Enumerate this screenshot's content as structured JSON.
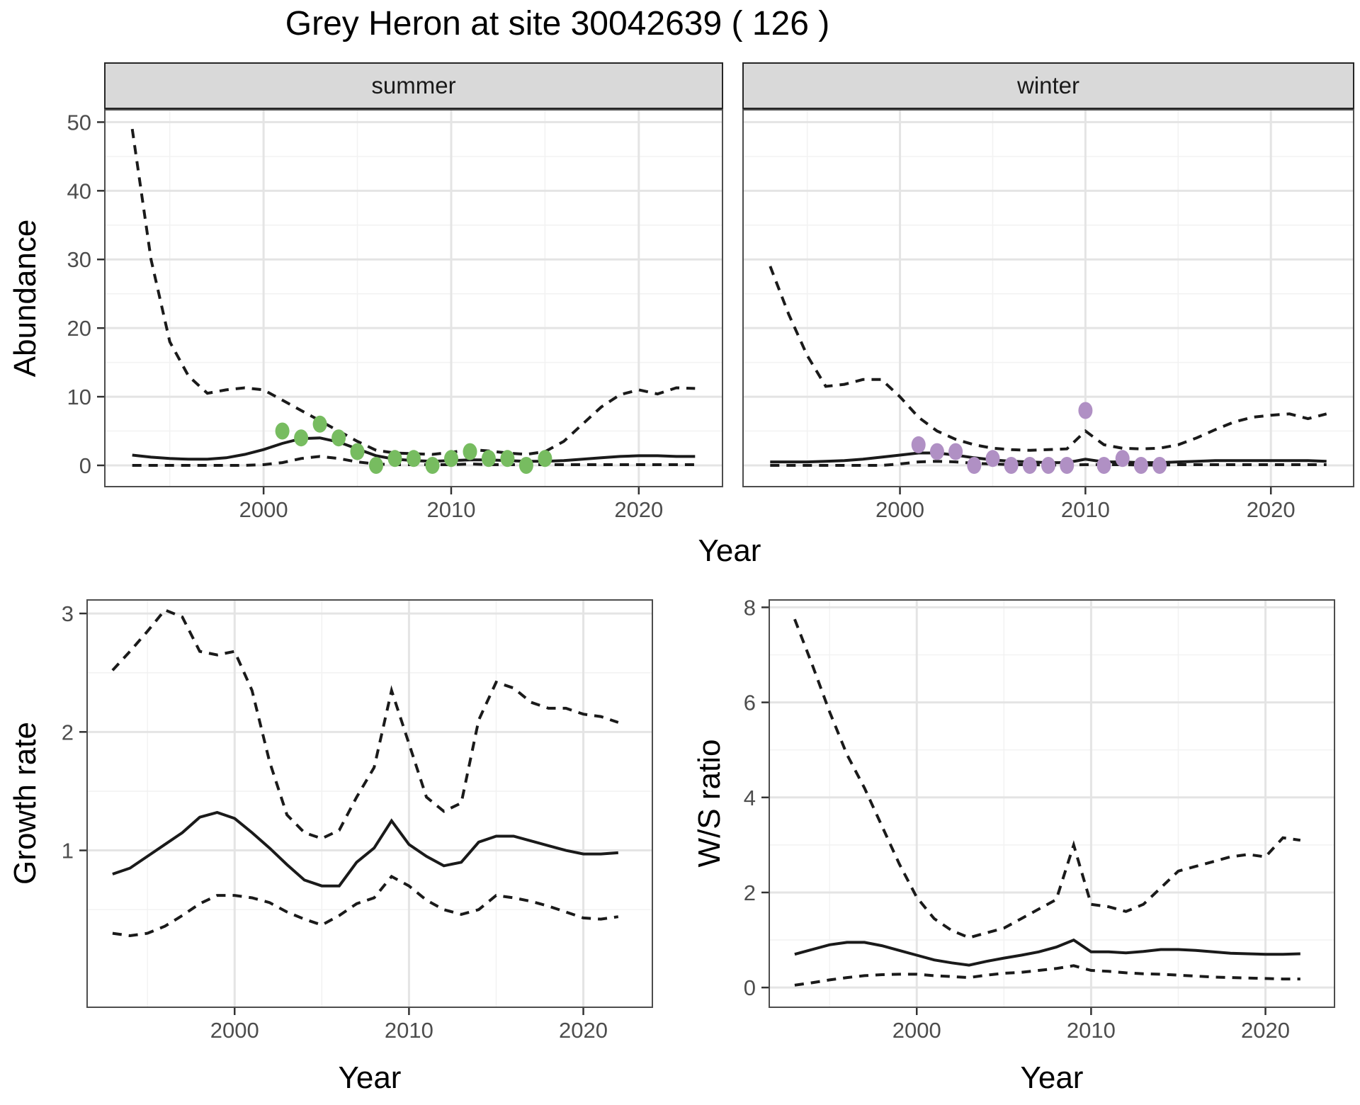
{
  "title": "Grey Heron at site 30042639 ( 126 )",
  "colors": {
    "line": "#1A1A1A",
    "summer_point": "#77BC60",
    "winter_point": "#B090C4",
    "grid_major": "#E4E4E4",
    "grid_minor": "#F2F2F2",
    "panel_border": "#4D4D4D",
    "strip_fill": "#D9D9D9",
    "tick_text": "#4D4D4D",
    "tick_mark": "#333333"
  },
  "axes": {
    "top_ylabel": "Abundance",
    "top_xlabel": "Year",
    "bottom_left_ylabel": "Growth rate",
    "bottom_left_xlabel": "Year",
    "bottom_right_ylabel": "W/S ratio",
    "bottom_right_xlabel": "Year"
  },
  "chart_data": [
    {
      "facet": "summer",
      "type": "line",
      "xlabel": "Year",
      "ylabel": "Abundance",
      "x_range": [
        1991.5,
        2024.5
      ],
      "y_range": [
        -3.2,
        51.9
      ],
      "x_ticks": [
        2000,
        2010,
        2020
      ],
      "x_minor": [
        1995,
        2005,
        2015
      ],
      "y_ticks": [
        0,
        10,
        20,
        30,
        40,
        50
      ],
      "y_minor": [
        5,
        15,
        25,
        35,
        45
      ],
      "years": [
        1993,
        1994,
        1995,
        1996,
        1997,
        1998,
        1999,
        2000,
        2001,
        2002,
        2003,
        2004,
        2005,
        2006,
        2007,
        2008,
        2009,
        2010,
        2011,
        2012,
        2013,
        2014,
        2015,
        2016,
        2017,
        2018,
        2019,
        2020,
        2021,
        2022,
        2023
      ],
      "series": [
        {
          "name": "upper_ci",
          "style": "dashed",
          "values": [
            49,
            30,
            18,
            13,
            10.5,
            11,
            11.3,
            11,
            9.5,
            8,
            6.5,
            5,
            3.5,
            2.2,
            1.8,
            1.7,
            1.6,
            1.9,
            2.3,
            2.1,
            1.8,
            1.6,
            2.0,
            3.5,
            6.0,
            8.5,
            10.3,
            11,
            10.4,
            11.3,
            11.2
          ]
        },
        {
          "name": "lower_ci",
          "style": "dashed",
          "values": [
            0,
            0,
            0,
            0,
            0,
            0,
            0,
            0.1,
            0.4,
            1.0,
            1.3,
            1.0,
            0.5,
            0.2,
            0.1,
            0.1,
            0.1,
            0.1,
            0.2,
            0.1,
            0.1,
            0.1,
            0.1,
            0.1,
            0.1,
            0.1,
            0.1,
            0.1,
            0.1,
            0.1,
            0.1
          ]
        },
        {
          "name": "fitted",
          "style": "solid",
          "values": [
            1.5,
            1.2,
            1.0,
            0.9,
            0.9,
            1.1,
            1.6,
            2.3,
            3.2,
            3.9,
            4.0,
            3.4,
            2.4,
            1.4,
            0.9,
            0.7,
            0.6,
            0.7,
            0.8,
            0.8,
            0.7,
            0.6,
            0.6,
            0.7,
            0.9,
            1.1,
            1.3,
            1.4,
            1.4,
            1.3,
            1.3
          ]
        }
      ],
      "points": {
        "name": "observed_counts",
        "color": "#77BC60",
        "years": [
          2001,
          2002,
          2003,
          2004,
          2005,
          2006,
          2007,
          2008,
          2009,
          2010,
          2011,
          2012,
          2013,
          2014,
          2015
        ],
        "values": [
          5,
          4,
          6,
          4,
          2,
          0,
          1,
          1,
          0,
          1,
          2,
          1,
          1,
          0,
          1
        ]
      }
    },
    {
      "facet": "winter",
      "type": "line",
      "xlabel": "Year",
      "ylabel": "Abundance",
      "x_range": [
        1991.5,
        2024.5
      ],
      "y_range": [
        -3.2,
        51.9
      ],
      "x_ticks": [
        2000,
        2010,
        2020
      ],
      "x_minor": [
        1995,
        2005,
        2015
      ],
      "y_ticks": [
        0,
        10,
        20,
        30,
        40,
        50
      ],
      "y_minor": [
        5,
        15,
        25,
        35,
        45
      ],
      "years": [
        1993,
        1994,
        1995,
        1996,
        1997,
        1998,
        1999,
        2000,
        2001,
        2002,
        2003,
        2004,
        2005,
        2006,
        2007,
        2008,
        2009,
        2010,
        2011,
        2012,
        2013,
        2014,
        2015,
        2016,
        2017,
        2018,
        2019,
        2020,
        2021,
        2022,
        2023
      ],
      "series": [
        {
          "name": "upper_ci",
          "style": "dashed",
          "values": [
            29,
            22,
            16,
            11.5,
            11.8,
            12.5,
            12.5,
            10,
            7,
            5,
            3.8,
            3.0,
            2.5,
            2.3,
            2.2,
            2.3,
            2.4,
            5.0,
            3.0,
            2.5,
            2.4,
            2.5,
            3.0,
            4.0,
            5.2,
            6.3,
            7.0,
            7.3,
            7.5,
            6.8,
            7.5
          ]
        },
        {
          "name": "lower_ci",
          "style": "dashed",
          "values": [
            0,
            0,
            0,
            0,
            0,
            0,
            0,
            0.2,
            0.5,
            0.6,
            0.5,
            0.3,
            0.2,
            0.1,
            0.1,
            0.05,
            0.05,
            0.1,
            0.1,
            0.1,
            0.05,
            0.05,
            0.1,
            0.1,
            0.1,
            0.1,
            0.1,
            0.1,
            0.1,
            0.1,
            0.1
          ]
        },
        {
          "name": "fitted",
          "style": "solid",
          "values": [
            0.5,
            0.5,
            0.5,
            0.6,
            0.7,
            0.9,
            1.2,
            1.5,
            1.8,
            1.8,
            1.5,
            1.1,
            0.8,
            0.6,
            0.5,
            0.4,
            0.4,
            0.9,
            0.5,
            0.5,
            0.4,
            0.4,
            0.5,
            0.6,
            0.7,
            0.7,
            0.7,
            0.7,
            0.7,
            0.7,
            0.6
          ]
        }
      ],
      "points": {
        "name": "observed_counts",
        "color": "#B090C4",
        "years": [
          2001,
          2002,
          2003,
          2004,
          2005,
          2006,
          2007,
          2008,
          2009,
          2010,
          2011,
          2012,
          2013,
          2014
        ],
        "values": [
          3,
          2,
          2,
          0,
          1,
          0,
          0,
          0,
          0,
          8,
          0,
          1,
          0,
          0
        ]
      }
    },
    {
      "facet": null,
      "type": "line",
      "xlabel": "Year",
      "ylabel": "Growth rate",
      "x_range": [
        1991.5,
        2024.0
      ],
      "y_range": [
        -0.33,
        3.12
      ],
      "x_ticks": [
        2000,
        2010,
        2020
      ],
      "x_minor": [
        1995,
        2005,
        2015
      ],
      "y_ticks": [
        1,
        2,
        3
      ],
      "y_minor": [
        0.5,
        1.5,
        2.5
      ],
      "years": [
        1993,
        1994,
        1995,
        1996,
        1997,
        1998,
        1999,
        2000,
        2001,
        2002,
        2003,
        2004,
        2005,
        2006,
        2007,
        2008,
        2009,
        2010,
        2011,
        2012,
        2013,
        2014,
        2015,
        2016,
        2017,
        2018,
        2019,
        2020,
        2021,
        2022
      ],
      "series": [
        {
          "name": "upper_ci",
          "style": "dashed",
          "values": [
            2.52,
            2.68,
            2.85,
            3.03,
            2.97,
            2.68,
            2.65,
            2.68,
            2.35,
            1.75,
            1.3,
            1.15,
            1.1,
            1.17,
            1.45,
            1.7,
            2.35,
            1.9,
            1.45,
            1.33,
            1.4,
            2.1,
            2.42,
            2.37,
            2.25,
            2.2,
            2.2,
            2.15,
            2.13,
            2.08
          ]
        },
        {
          "name": "lower_ci",
          "style": "dashed",
          "values": [
            0.3,
            0.28,
            0.3,
            0.36,
            0.45,
            0.55,
            0.62,
            0.62,
            0.6,
            0.56,
            0.48,
            0.42,
            0.37,
            0.45,
            0.55,
            0.6,
            0.78,
            0.7,
            0.58,
            0.5,
            0.46,
            0.5,
            0.62,
            0.6,
            0.57,
            0.53,
            0.48,
            0.43,
            0.42,
            0.44
          ]
        },
        {
          "name": "fitted",
          "style": "solid",
          "values": [
            0.8,
            0.85,
            0.95,
            1.05,
            1.15,
            1.28,
            1.32,
            1.27,
            1.15,
            1.02,
            0.88,
            0.75,
            0.7,
            0.7,
            0.9,
            1.02,
            1.25,
            1.05,
            0.95,
            0.87,
            0.9,
            1.07,
            1.12,
            1.12,
            1.08,
            1.04,
            1.0,
            0.97,
            0.97,
            0.98
          ]
        }
      ]
    },
    {
      "facet": null,
      "type": "line",
      "xlabel": "Year",
      "ylabel": "W/S ratio",
      "x_range": [
        1991.5,
        2024.0
      ],
      "y_range": [
        -0.43,
        8.17
      ],
      "x_ticks": [
        2000,
        2010,
        2020
      ],
      "x_minor": [
        1995,
        2005,
        2015
      ],
      "y_ticks": [
        0,
        2,
        4,
        6,
        8
      ],
      "y_minor": [
        1,
        3,
        5,
        7
      ],
      "years": [
        1993,
        1994,
        1995,
        1996,
        1997,
        1998,
        1999,
        2000,
        2001,
        2002,
        2003,
        2004,
        2005,
        2006,
        2007,
        2008,
        2009,
        2010,
        2011,
        2012,
        2013,
        2014,
        2015,
        2016,
        2017,
        2018,
        2019,
        2020,
        2021,
        2022
      ],
      "series": [
        {
          "name": "upper_ci",
          "style": "dashed",
          "values": [
            7.75,
            6.8,
            5.8,
            4.9,
            4.2,
            3.4,
            2.6,
            1.9,
            1.45,
            1.2,
            1.05,
            1.15,
            1.25,
            1.45,
            1.65,
            1.85,
            3.0,
            1.75,
            1.7,
            1.6,
            1.75,
            2.1,
            2.45,
            2.55,
            2.65,
            2.75,
            2.8,
            2.75,
            3.15,
            3.1
          ]
        },
        {
          "name": "lower_ci",
          "style": "dashed",
          "values": [
            0.05,
            0.1,
            0.16,
            0.21,
            0.25,
            0.27,
            0.28,
            0.28,
            0.25,
            0.23,
            0.21,
            0.26,
            0.3,
            0.32,
            0.36,
            0.4,
            0.46,
            0.36,
            0.34,
            0.31,
            0.29,
            0.28,
            0.26,
            0.24,
            0.22,
            0.21,
            0.2,
            0.19,
            0.18,
            0.18
          ]
        },
        {
          "name": "fitted",
          "style": "solid",
          "values": [
            0.7,
            0.8,
            0.9,
            0.95,
            0.95,
            0.88,
            0.78,
            0.68,
            0.58,
            0.52,
            0.47,
            0.55,
            0.62,
            0.68,
            0.75,
            0.85,
            1.0,
            0.75,
            0.75,
            0.73,
            0.76,
            0.8,
            0.8,
            0.78,
            0.75,
            0.72,
            0.71,
            0.7,
            0.7,
            0.71
          ]
        }
      ]
    }
  ]
}
